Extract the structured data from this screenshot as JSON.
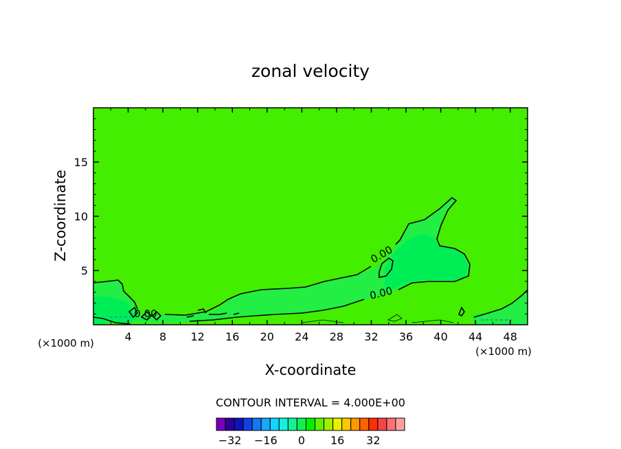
{
  "chart_data": {
    "type": "heatmap",
    "title": "zonal velocity",
    "xlabel": "X-coordinate",
    "ylabel": "Z-coordinate",
    "x_unit_label": "(×1000 m)",
    "x_unit_label_right": "(×1000 m)",
    "xlim": [
      0,
      50
    ],
    "ylim": [
      0,
      20
    ],
    "x_ticks": [
      4,
      8,
      12,
      16,
      20,
      24,
      28,
      32,
      36,
      40,
      44,
      48
    ],
    "y_ticks": [
      5,
      10,
      15
    ],
    "background_level": "0 to 4",
    "contour_labels": [
      "0.00",
      "0.00",
      "0.00"
    ],
    "contour_interval_text": "CONTOUR INTERVAL = 4.000E+00",
    "colorbar": {
      "min": -36,
      "max": 36,
      "step": 4,
      "tick_values": [
        -32,
        -16,
        0,
        16,
        32
      ],
      "tick_labels": [
        "-32",
        "-16",
        "0",
        "16",
        "32"
      ],
      "colors": [
        "#7a00bb",
        "#2d0099",
        "#1010b8",
        "#1040e0",
        "#1478f0",
        "#18a8ff",
        "#14d4ff",
        "#14f0dc",
        "#14f096",
        "#14f050",
        "#00f000",
        "#60f000",
        "#a0f000",
        "#e6f000",
        "#f8c800",
        "#ff9800",
        "#ff6400",
        "#ff3000",
        "#f04848",
        "#ff7070",
        "#ffa0a0"
      ]
    },
    "regions": [
      {
        "level": "0 to 4",
        "color": "#44ee00"
      },
      {
        "level": "-4 to 0",
        "color": "#22ee44"
      },
      {
        "level": "-8 to -4",
        "color": "#00ee55"
      }
    ]
  }
}
